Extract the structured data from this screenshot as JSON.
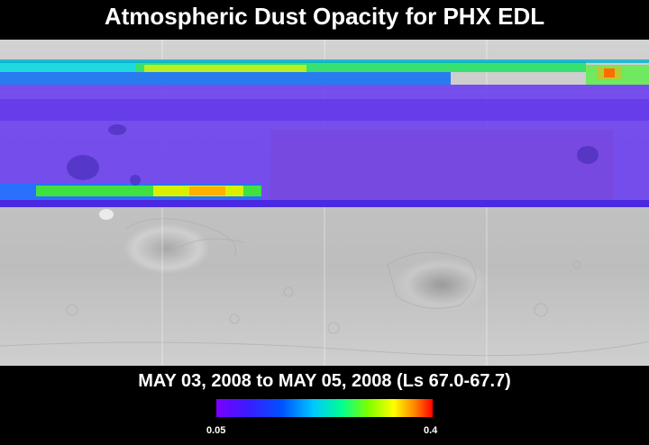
{
  "title": "Atmospheric Dust Opacity for PHX EDL",
  "subtitle": "MAY 03, 2008 to MAY 05, 2008 (Ls 67.0-67.7)",
  "colorbar": {
    "min_label": "0.05",
    "max_label": "0.4",
    "colors": [
      "#7a00ff",
      "#3a1cff",
      "#0050ff",
      "#00c8ff",
      "#00ff90",
      "#7cff00",
      "#ffff00",
      "#ff8000",
      "#ff0000"
    ]
  },
  "map": {
    "base_colors": {
      "terrain": "#c8c8c8",
      "low_opacity": "#6a3cf0"
    }
  }
}
